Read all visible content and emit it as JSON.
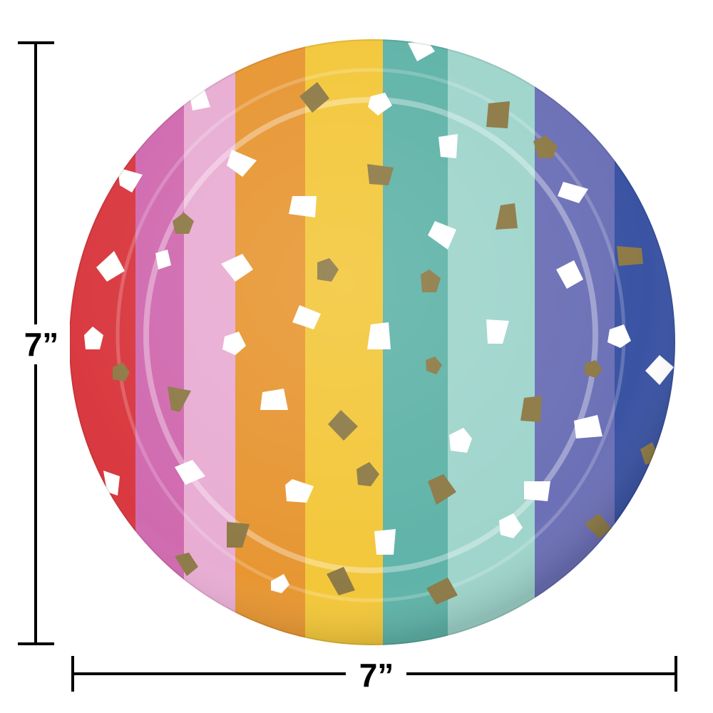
{
  "dimensions": {
    "height": "7”",
    "width": "7”"
  }
}
